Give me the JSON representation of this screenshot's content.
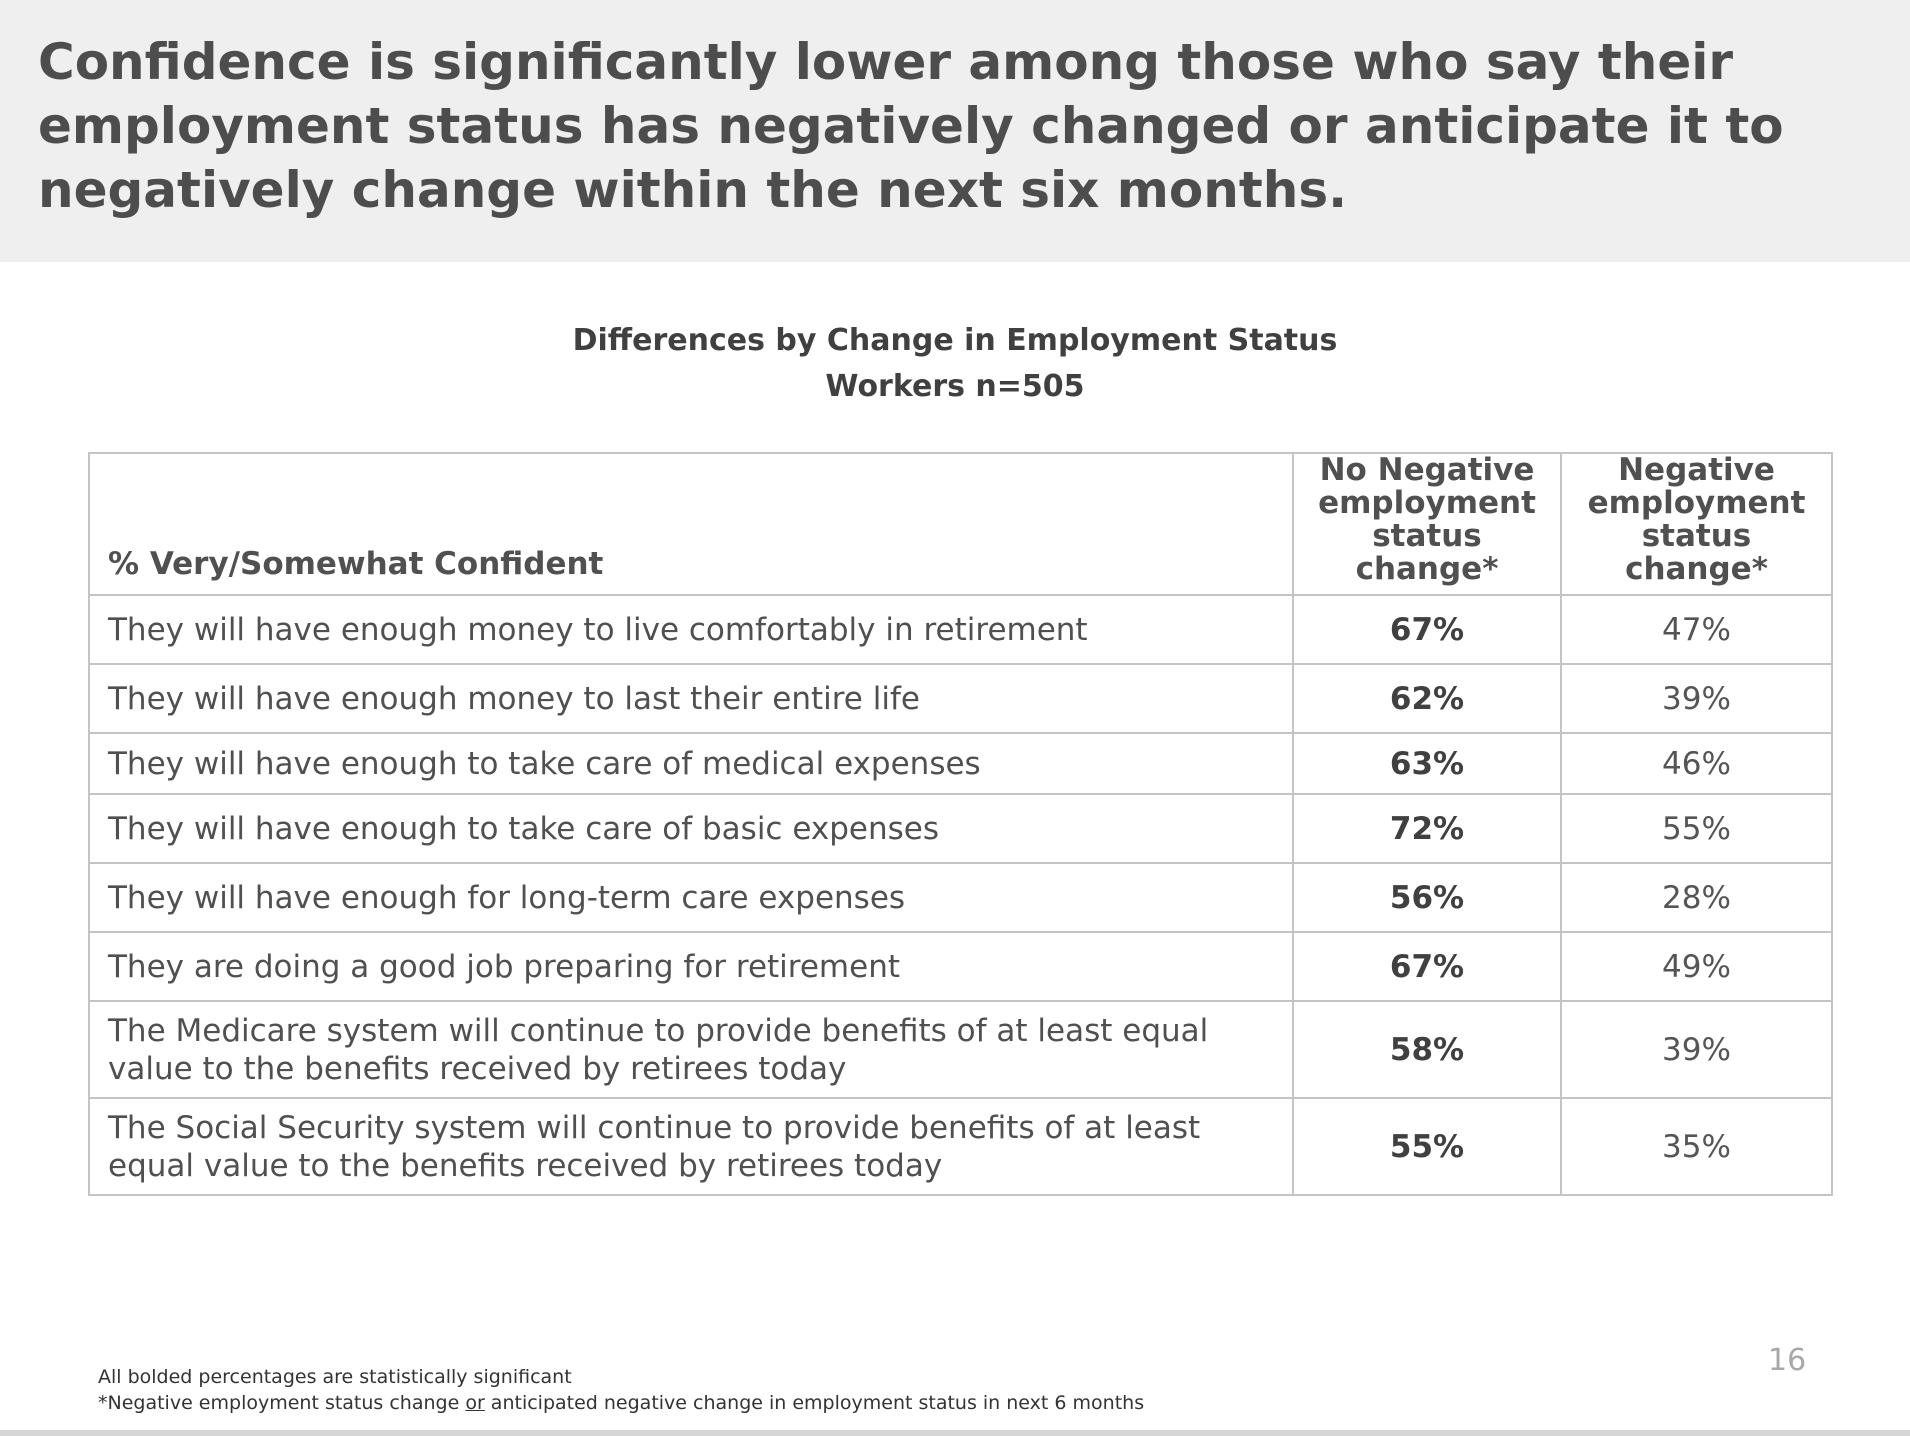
{
  "headline": "Confidence is significantly lower among those who say their employment status has negatively changed or anticipate it to negatively change within the next six months.",
  "table_title": "Differences by Change in Employment Status",
  "table_subtitle": "Workers n=505",
  "colors": {
    "header_band": "#efefef",
    "column_header_text": "#1f5ea8",
    "grid": "#c4c4c4",
    "page_number": "#a8a8a8"
  },
  "chart_data": {
    "type": "table",
    "title": "Differences by Change in Employment Status",
    "subtitle": "Workers n=505",
    "stub_header": "% Very/Somewhat Confident",
    "columns": [
      "No Negative employment status change*",
      "Negative employment status change*"
    ],
    "rows": [
      {
        "label": "They will have enough money to live comfortably in retirement",
        "values": [
          "67%",
          "47%"
        ]
      },
      {
        "label": "They will have enough money to last their entire life",
        "values": [
          "62%",
          "39%"
        ]
      },
      {
        "label": "They will have enough to take care of medical expenses",
        "values": [
          "63%",
          "46%"
        ]
      },
      {
        "label": "They will have enough to take care of basic expenses",
        "values": [
          "72%",
          "55%"
        ]
      },
      {
        "label": "They will have enough for long-term care expenses",
        "values": [
          "56%",
          "28%"
        ]
      },
      {
        "label": "They are doing a good job preparing for retirement",
        "values": [
          "67%",
          "49%"
        ]
      },
      {
        "label": "The Medicare system will continue to provide benefits of at least equal value to the benefits received by retirees today",
        "values": [
          "58%",
          "39%"
        ]
      },
      {
        "label": "The Social Security system will continue to provide benefits of at least equal value to the benefits received by retirees today",
        "values": [
          "55%",
          "35%"
        ]
      }
    ],
    "bold_column": 0
  },
  "footnotes": {
    "line1": "All bolded percentages are statistically significant",
    "line2_before": "*Negative employment status change ",
    "line2_underlined": "or",
    "line2_after": " anticipated negative change in employment status in next 6 months"
  },
  "page_number": "16"
}
